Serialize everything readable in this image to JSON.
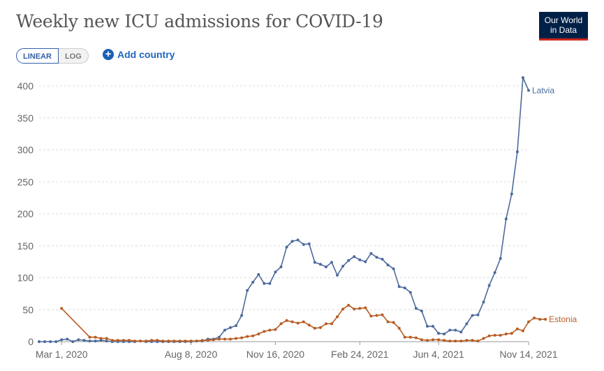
{
  "header": {
    "title": "Weekly new ICU admissions for COVID-19",
    "logo_line1": "Our World",
    "logo_line2": "in Data"
  },
  "controls": {
    "linear_label": "LINEAR",
    "log_label": "LOG",
    "add_country_label": "Add country",
    "selected_scale": "LINEAR"
  },
  "chart_data": {
    "type": "line",
    "title": "Weekly new ICU admissions for COVID-19",
    "xlabel": "",
    "ylabel": "",
    "x_tick_labels": [
      "Mar 1, 2020",
      "Aug 8, 2020",
      "Nov 16, 2020",
      "Feb 24, 2021",
      "Jun 4, 2021",
      "Nov 14, 2021"
    ],
    "y_ticks": [
      0,
      50,
      100,
      150,
      200,
      250,
      300,
      350,
      400
    ],
    "ylim": [
      0,
      400
    ],
    "grid": "horizontal dashed",
    "legend": "end-of-line labels",
    "series": [
      {
        "name": "Latvia",
        "color": "#4c6a9c",
        "values": [
          0,
          0,
          0,
          0,
          3,
          4,
          0,
          3,
          2,
          1,
          1,
          2,
          1,
          0,
          0,
          0,
          0,
          0,
          1,
          0,
          0,
          0,
          0,
          0,
          0,
          0,
          0,
          0,
          1,
          1,
          4,
          4,
          7,
          18,
          22,
          25,
          41,
          80,
          93,
          105,
          91,
          91,
          109,
          117,
          148,
          157,
          159,
          152,
          153,
          124,
          121,
          117,
          124,
          104,
          118,
          127,
          133,
          128,
          125,
          138,
          132,
          129,
          120,
          114,
          86,
          84,
          77,
          52,
          48,
          24,
          24,
          13,
          12,
          18,
          18,
          15,
          28,
          41,
          42,
          62,
          88,
          108,
          130,
          192,
          231,
          297,
          413,
          393
        ]
      },
      {
        "name": "Estonia",
        "color": "#b85b22",
        "values": [
          null,
          null,
          null,
          null,
          52,
          null,
          null,
          null,
          null,
          7,
          7,
          5,
          5,
          2,
          2,
          2,
          2,
          1,
          1,
          1,
          2,
          2,
          1,
          1,
          1,
          1,
          1,
          1,
          1,
          2,
          2,
          3,
          4,
          4,
          4,
          5,
          6,
          8,
          9,
          12,
          16,
          18,
          19,
          28,
          33,
          31,
          29,
          31,
          26,
          21,
          22,
          28,
          28,
          39,
          51,
          57,
          51,
          52,
          53,
          40,
          41,
          42,
          31,
          30,
          21,
          7,
          7,
          6,
          3,
          2,
          3,
          3,
          2,
          1,
          1,
          1,
          2,
          2,
          1,
          5,
          9,
          10,
          10,
          12,
          13,
          20,
          17,
          31,
          37,
          35,
          35
        ]
      }
    ]
  }
}
